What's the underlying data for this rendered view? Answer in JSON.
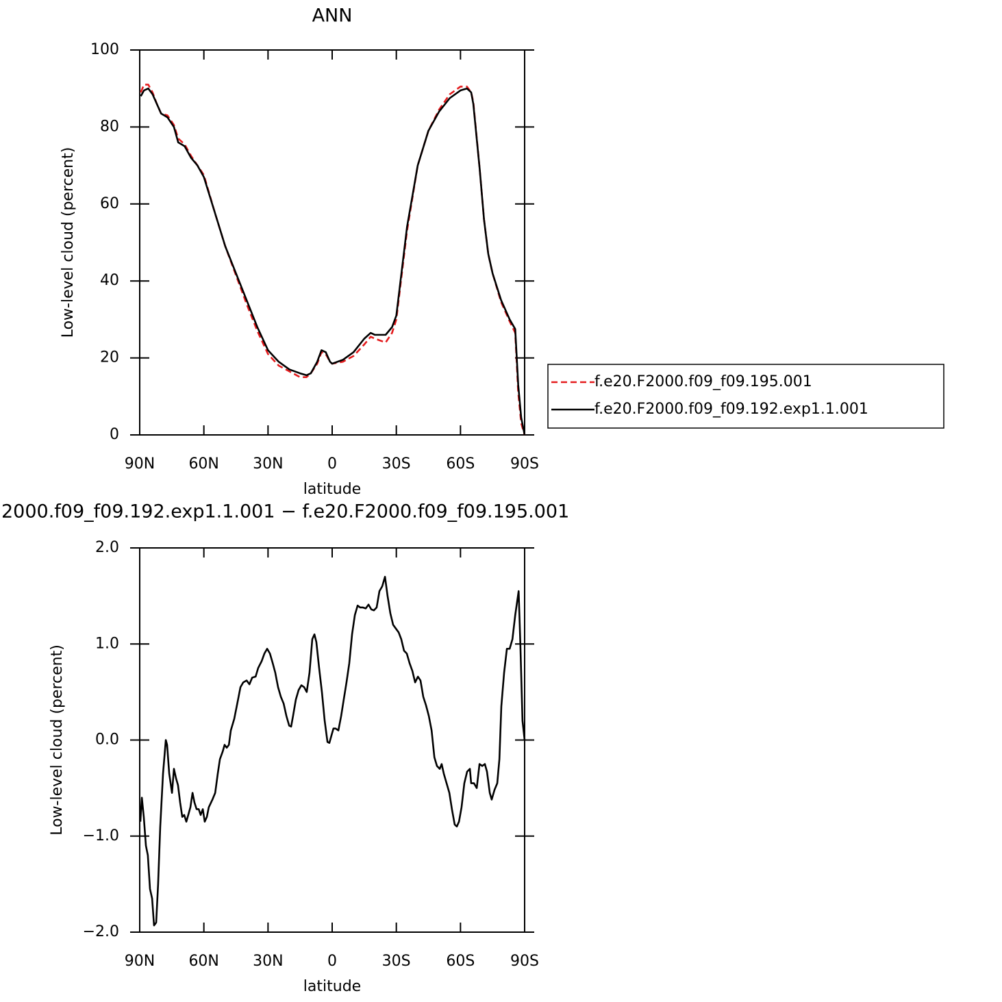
{
  "chart_data": [
    {
      "type": "line",
      "title": "ANN",
      "xlabel": "latitude",
      "ylabel": "Low-level cloud (percent)",
      "xlim": [
        90,
        -90
      ],
      "xticks": [
        {
          "value": 90,
          "label": "90N"
        },
        {
          "value": 60,
          "label": "60N"
        },
        {
          "value": 30,
          "label": "30N"
        },
        0,
        {
          "value": -30,
          "label": "30S"
        },
        {
          "value": -60,
          "label": "60S"
        },
        {
          "value": -90,
          "label": "90S"
        }
      ],
      "ylim": [
        0,
        100
      ],
      "yticks": [
        0,
        20,
        40,
        60,
        80,
        100
      ],
      "legend": "right",
      "x": [
        89.5,
        88,
        86,
        84,
        82,
        80,
        77,
        74,
        72,
        69,
        66,
        63,
        60,
        55,
        50,
        45,
        40,
        35,
        30,
        25,
        20,
        15,
        12,
        10,
        7,
        5,
        3,
        1,
        0,
        -5,
        -10,
        -15,
        -18,
        -20,
        -25,
        -28,
        -30,
        -35,
        -40,
        -45,
        -50,
        -55,
        -60,
        -63,
        -65,
        -66,
        -69,
        -71,
        -73,
        -75,
        -79,
        -83,
        -85.6,
        -87,
        -88.4,
        -90
      ],
      "series": [
        {
          "name": "f.e20.F2000.f09_f09.195.001",
          "color": "#e41a1c",
          "dashed": true,
          "values": [
            89,
            91,
            91,
            89,
            86,
            83.5,
            83,
            80.5,
            77,
            75.5,
            72.5,
            70,
            67.5,
            58,
            49,
            41.5,
            34,
            27,
            21,
            18,
            16.5,
            15,
            15,
            16,
            18.5,
            21.5,
            21,
            19,
            18.5,
            19,
            20.5,
            23.5,
            25.5,
            25,
            24,
            26.5,
            30,
            53,
            70,
            79,
            84.5,
            88.5,
            90.5,
            90.5,
            89,
            86.5,
            69,
            56,
            47,
            42,
            34.5,
            29.5,
            26.5,
            11,
            3,
            0
          ]
        },
        {
          "name": "f.e20.F2000.f09_f09.192.exp1.1.001",
          "color": "#000000",
          "dashed": false,
          "values": [
            88,
            89.5,
            90,
            88.5,
            86,
            83.5,
            82.5,
            80,
            76,
            75,
            72,
            70,
            67,
            58,
            49,
            42,
            35,
            28,
            22,
            19,
            17,
            16,
            15.5,
            16,
            19,
            22,
            21.5,
            19,
            18.5,
            19.5,
            21.5,
            25,
            26.5,
            26,
            26,
            28,
            31,
            54,
            70,
            79,
            84,
            87.5,
            89.5,
            90,
            89,
            86,
            69,
            56,
            47,
            42,
            35,
            30,
            27.5,
            13,
            4.5,
            0
          ]
        }
      ]
    },
    {
      "type": "line",
      "title": "2000.f09_f09.192.exp1.1.001 − f.e20.F2000.f09_f09.195.001",
      "xlabel": "latitude",
      "ylabel": "Low-level cloud (percent)",
      "xlim": [
        90,
        -90
      ],
      "xticks": [
        {
          "value": 90,
          "label": "90N"
        },
        {
          "value": 60,
          "label": "60N"
        },
        {
          "value": 30,
          "label": "30N"
        },
        0,
        {
          "value": -30,
          "label": "30S"
        },
        {
          "value": -60,
          "label": "60S"
        },
        {
          "value": -90,
          "label": "90S"
        }
      ],
      "ylim": [
        -2,
        2
      ],
      "yticks": [
        {
          "value": -2,
          "label": "−2.0"
        },
        {
          "value": -1,
          "label": "−1.0"
        },
        {
          "value": 0,
          "label": "0.0"
        },
        {
          "value": 1,
          "label": "1.0"
        },
        {
          "value": 2,
          "label": "2.0"
        }
      ],
      "x": [
        89.7,
        89.0,
        88.1,
        87.1,
        86.2,
        85.2,
        84.2,
        83.3,
        82.3,
        81.4,
        80.4,
        79.1,
        77.8,
        77.2,
        76.2,
        74.9,
        74.0,
        73.0,
        72.1,
        71.1,
        70.1,
        69.2,
        68.2,
        67.3,
        66.3,
        65.3,
        64.4,
        63.4,
        62.4,
        61.5,
        60.5,
        59.6,
        58.6,
        57.7,
        56.0,
        54.7,
        53.5,
        52.5,
        51.2,
        50.3,
        49.3,
        48.3,
        47.4,
        45.8,
        44.2,
        42.9,
        41.6,
        40.0,
        38.7,
        37.4,
        35.8,
        34.6,
        33.0,
        31.7,
        30.4,
        29.1,
        27.8,
        26.6,
        25.3,
        24.0,
        22.7,
        21.4,
        20.1,
        19.2,
        18.3,
        17.0,
        15.7,
        14.4,
        13.1,
        11.9,
        10.6,
        9.3,
        8.3,
        7.4,
        6.1,
        4.8,
        3.5,
        2.2,
        1.3,
        0.3,
        -0.6,
        -1.6,
        -2.9,
        -4.2,
        -5.4,
        -6.7,
        -8.0,
        -9.3,
        -10.6,
        -11.9,
        -13.1,
        -14.4,
        -15.7,
        -17.0,
        -18.3,
        -19.5,
        -20.8,
        -22.1,
        -23.4,
        -24.7,
        -25.9,
        -27.2,
        -28.5,
        -29.8,
        -31.1,
        -32.3,
        -33.6,
        -34.9,
        -36.2,
        -37.5,
        -38.8,
        -40.1,
        -41.3,
        -42.6,
        -43.9,
        -45.2,
        -46.5,
        -47.8,
        -49.0,
        -50.3,
        -51.2,
        -52.2,
        -53.5,
        -54.8,
        -56.0,
        -57.3,
        -58.3,
        -59.3,
        -60.5,
        -61.8,
        -63.1,
        -64.4,
        -65.0,
        -66.3,
        -67.6,
        -68.9,
        -70.2,
        -71.4,
        -72.4,
        -73.7,
        -74.6,
        -75.9,
        -77.2,
        -78.2,
        -79.1,
        -80.4,
        -81.7,
        -83.0,
        -84.3,
        -85.6,
        -87.2,
        -88.0,
        -89.0,
        -90.0
      ],
      "series": [
        {
          "color": "#000000",
          "dashed": false,
          "values": [
            -0.85,
            -0.6,
            -0.8,
            -1.1,
            -1.2,
            -1.55,
            -1.65,
            -1.93,
            -1.9,
            -1.5,
            -0.9,
            -0.35,
            0.0,
            -0.05,
            -0.35,
            -0.55,
            -0.3,
            -0.4,
            -0.47,
            -0.65,
            -0.8,
            -0.78,
            -0.85,
            -0.78,
            -0.7,
            -0.55,
            -0.65,
            -0.72,
            -0.72,
            -0.78,
            -0.72,
            -0.85,
            -0.8,
            -0.7,
            -0.62,
            -0.55,
            -0.35,
            -0.2,
            -0.12,
            -0.05,
            -0.08,
            -0.05,
            0.1,
            0.22,
            0.4,
            0.55,
            0.6,
            0.62,
            0.58,
            0.65,
            0.66,
            0.75,
            0.82,
            0.9,
            0.95,
            0.9,
            0.8,
            0.7,
            0.55,
            0.45,
            0.38,
            0.25,
            0.15,
            0.14,
            0.25,
            0.42,
            0.52,
            0.57,
            0.55,
            0.5,
            0.7,
            1.05,
            1.1,
            1.02,
            0.75,
            0.5,
            0.2,
            -0.02,
            -0.03,
            0.05,
            0.12,
            0.12,
            0.1,
            0.25,
            0.42,
            0.6,
            0.8,
            1.1,
            1.3,
            1.4,
            1.38,
            1.38,
            1.37,
            1.41,
            1.36,
            1.35,
            1.38,
            1.55,
            1.6,
            1.7,
            1.5,
            1.32,
            1.2,
            1.16,
            1.12,
            1.05,
            0.93,
            0.9,
            0.8,
            0.72,
            0.6,
            0.66,
            0.62,
            0.45,
            0.36,
            0.25,
            0.1,
            -0.18,
            -0.27,
            -0.3,
            -0.25,
            -0.35,
            -0.45,
            -0.55,
            -0.72,
            -0.88,
            -0.9,
            -0.85,
            -0.7,
            -0.45,
            -0.33,
            -0.3,
            -0.45,
            -0.45,
            -0.5,
            -0.25,
            -0.27,
            -0.25,
            -0.33,
            -0.55,
            -0.62,
            -0.52,
            -0.45,
            -0.2,
            0.35,
            0.7,
            0.95,
            0.95,
            1.05,
            1.3,
            1.55,
            1.0,
            0.2,
            0.0
          ]
        }
      ]
    }
  ]
}
